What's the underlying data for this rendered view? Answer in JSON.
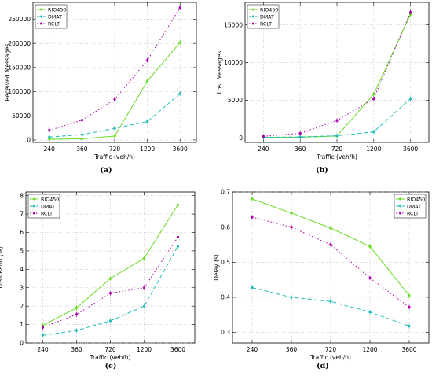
{
  "chart_data": [
    {
      "type": "line",
      "caption": "(a)",
      "xlabel": "Traffic (veh/h)",
      "ylabel": "Received Messages",
      "x_ticks": [
        "240",
        "360",
        "720",
        "1200",
        "3600"
      ],
      "y_ticks": [
        0,
        50000,
        100000,
        150000,
        200000,
        250000
      ],
      "y_tick_labels": [
        "0",
        "50000",
        "100000",
        "150000",
        "200000",
        "250000"
      ],
      "ylim": [
        -5000,
        285000
      ],
      "grid": true,
      "legend_position": "top-left",
      "series": [
        {
          "name": "RIO450",
          "values": [
            1500,
            2500,
            8000,
            122000,
            202000
          ],
          "color": "#66dd22",
          "dash": "solid"
        },
        {
          "name": "DMAT",
          "values": [
            6000,
            11000,
            24000,
            38000,
            96000
          ],
          "color": "#22bbbb",
          "dash": "dashed"
        },
        {
          "name": "RCLT",
          "values": [
            20000,
            41000,
            84000,
            165000,
            274000
          ],
          "color": "#aa00aa",
          "dash": "dotted"
        }
      ]
    },
    {
      "type": "line",
      "caption": "(b)",
      "xlabel": "Traffic (veh/h)",
      "ylabel": "Lost Messages",
      "x_ticks": [
        "240",
        "360",
        "720",
        "1200",
        "3600"
      ],
      "y_ticks": [
        0,
        5000,
        10000,
        15000
      ],
      "y_tick_labels": [
        "0",
        "5000",
        "10000",
        "15000"
      ],
      "ylim": [
        -600,
        18000
      ],
      "grid": true,
      "legend_position": "top-left",
      "series": [
        {
          "name": "RIO450",
          "values": [
            50,
            80,
            250,
            5800,
            16400
          ],
          "color": "#66dd22",
          "dash": "solid"
        },
        {
          "name": "DMAT",
          "values": [
            80,
            120,
            280,
            800,
            5200
          ],
          "color": "#22bbbb",
          "dash": "dashed"
        },
        {
          "name": "RCLT",
          "values": [
            200,
            600,
            2300,
            5200,
            16700
          ],
          "color": "#aa00aa",
          "dash": "dotted"
        }
      ]
    },
    {
      "type": "line",
      "caption": "(c)",
      "xlabel": "Traffic (veh/h)",
      "ylabel": "Loss Ratio (%)",
      "x_ticks": [
        "240",
        "360",
        "720",
        "1200",
        "3600"
      ],
      "y_ticks": [
        0,
        1,
        2,
        3,
        4,
        5,
        6,
        7,
        8
      ],
      "y_tick_labels": [
        "0",
        "1",
        "2",
        "3",
        "4",
        "5",
        "6",
        "7",
        "8"
      ],
      "ylim": [
        0,
        8.2
      ],
      "grid": true,
      "legend_position": "top-left",
      "series": [
        {
          "name": "RIO450",
          "values": [
            0.95,
            1.9,
            3.5,
            4.6,
            7.5
          ],
          "color": "#66dd22",
          "dash": "solid"
        },
        {
          "name": "DMAT",
          "values": [
            0.42,
            0.68,
            1.2,
            2.0,
            5.25
          ],
          "color": "#22bbbb",
          "dash": "dashed"
        },
        {
          "name": "RCLT",
          "values": [
            0.85,
            1.55,
            2.7,
            3.0,
            5.75
          ],
          "color": "#aa00aa",
          "dash": "dotted"
        }
      ]
    },
    {
      "type": "line",
      "caption": "(d)",
      "xlabel": "Traffic (veh/h)",
      "ylabel": "Delay (s)",
      "x_ticks": [
        "240",
        "360",
        "720",
        "1200",
        "3600"
      ],
      "y_ticks": [
        0.3,
        0.4,
        0.5,
        0.6,
        0.7
      ],
      "y_tick_labels": [
        "0.3",
        "0.4",
        "0.5",
        "0.6",
        "0.7"
      ],
      "ylim": [
        0.27,
        0.7
      ],
      "grid": true,
      "legend_position": "top-right",
      "series": [
        {
          "name": "RIO450",
          "values": [
            0.68,
            0.64,
            0.597,
            0.545,
            0.405
          ],
          "color": "#66dd22",
          "dash": "solid"
        },
        {
          "name": "DMAT",
          "values": [
            0.428,
            0.4,
            0.388,
            0.358,
            0.318
          ],
          "color": "#22bbbb",
          "dash": "dashed"
        },
        {
          "name": "RCLT",
          "values": [
            0.628,
            0.6,
            0.55,
            0.455,
            0.372
          ],
          "color": "#aa00aa",
          "dash": "dotted"
        }
      ]
    }
  ]
}
